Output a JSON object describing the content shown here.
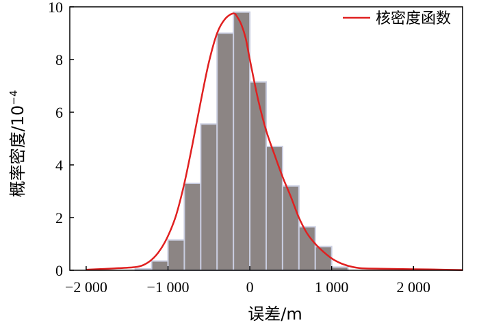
{
  "chart_data": {
    "type": "bar",
    "title": "",
    "xlabel": "误差/m",
    "ylabel": "概率密度/10",
    "ylabel_exponent": "−4",
    "xlim": [
      -2200,
      2600
    ],
    "ylim": [
      0,
      10
    ],
    "xticks": [
      -2000,
      -1000,
      0,
      1000,
      2000
    ],
    "xtick_labels": [
      "−2 000",
      "−1 000",
      "0",
      "1 000",
      "2 000"
    ],
    "yticks": [
      0,
      2,
      4,
      6,
      8,
      10
    ],
    "ytick_labels": [
      "0",
      "2",
      "4",
      "6",
      "8",
      "10"
    ],
    "grid": false,
    "legend": {
      "position": "top-right",
      "entries": [
        "核密度函数"
      ]
    },
    "histogram": {
      "name": "",
      "color": "#8c8584",
      "edge_color": "#c9cde0",
      "bin_edges": [
        -1400,
        -1200,
        -1000,
        -800,
        -600,
        -400,
        -200,
        0,
        200,
        400,
        600,
        800,
        1000,
        1200
      ],
      "values": [
        0.05,
        0.35,
        1.15,
        3.3,
        5.55,
        9.0,
        9.8,
        7.15,
        4.7,
        3.2,
        1.65,
        0.9,
        0.12
      ]
    },
    "series": [
      {
        "name": "核密度函数",
        "type": "line",
        "color": "#e02020",
        "x": [
          -2000,
          -1800,
          -1600,
          -1400,
          -1300,
          -1200,
          -1100,
          -1000,
          -900,
          -800,
          -700,
          -600,
          -500,
          -400,
          -300,
          -200,
          -150,
          -100,
          -50,
          0,
          100,
          200,
          300,
          400,
          500,
          600,
          700,
          800,
          900,
          1000,
          1100,
          1200,
          1300,
          1400,
          1600,
          1800,
          2000,
          2200,
          2400,
          2600
        ],
        "y": [
          0.02,
          0.05,
          0.08,
          0.12,
          0.2,
          0.4,
          0.75,
          1.3,
          2.1,
          3.3,
          4.8,
          6.4,
          7.9,
          9.0,
          9.55,
          9.75,
          9.6,
          9.3,
          8.8,
          8.0,
          6.5,
          5.3,
          4.4,
          3.55,
          2.8,
          2.0,
          1.4,
          1.0,
          0.7,
          0.45,
          0.28,
          0.17,
          0.1,
          0.07,
          0.06,
          0.05,
          0.04,
          0.03,
          0.02,
          0.01
        ]
      }
    ]
  }
}
